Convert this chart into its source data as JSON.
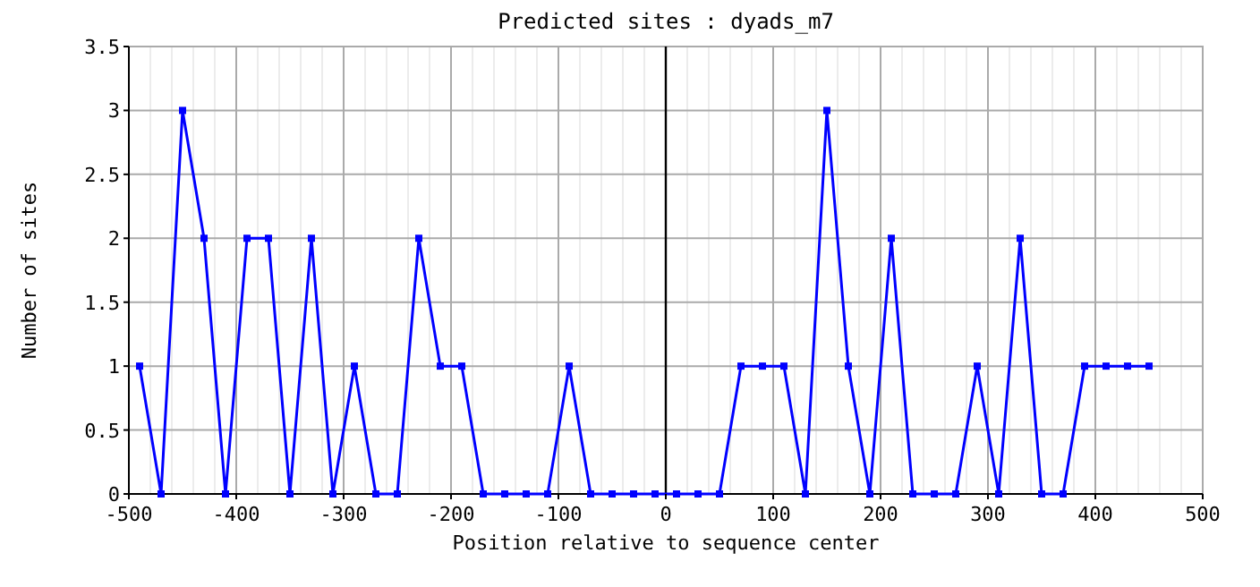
{
  "chart_data": {
    "type": "line",
    "title": "Predicted sites : dyads_m7",
    "xlabel": "Position relative to sequence center",
    "ylabel": "Number of sites",
    "x": [
      -490,
      -470,
      -450,
      -430,
      -410,
      -390,
      -370,
      -350,
      -330,
      -310,
      -290,
      -270,
      -250,
      -230,
      -210,
      -190,
      -170,
      -150,
      -130,
      -110,
      -90,
      -70,
      -50,
      -30,
      -10,
      10,
      30,
      50,
      70,
      90,
      110,
      130,
      150,
      170,
      190,
      210,
      230,
      250,
      270,
      290,
      310,
      330,
      350,
      370,
      390,
      410,
      430,
      450
    ],
    "series": [
      {
        "color": "#0000ff",
        "values": [
          1,
          0,
          3,
          2,
          0,
          2,
          2,
          0,
          2,
          0,
          1,
          0,
          0,
          2,
          1,
          1,
          0,
          0,
          0,
          0,
          1,
          0,
          0,
          0,
          0,
          0,
          0,
          0,
          1,
          1,
          1,
          0,
          3,
          1,
          0,
          2,
          0,
          0,
          0,
          1,
          0,
          2,
          0,
          0,
          1,
          1,
          1,
          1
        ]
      }
    ],
    "xlim": [
      -500,
      500
    ],
    "xticks": [
      -500,
      -400,
      -300,
      -200,
      -100,
      0,
      100,
      200,
      300,
      400,
      500
    ],
    "ylim": [
      0,
      3.5
    ],
    "yticks": [
      0,
      0.5,
      1,
      1.5,
      2,
      2.5,
      3,
      3.5
    ],
    "ref_lines": [
      {
        "axis": "x",
        "value": 0,
        "color": "#000000"
      }
    ],
    "grid": true,
    "marker": "square",
    "line_style": "solid"
  }
}
